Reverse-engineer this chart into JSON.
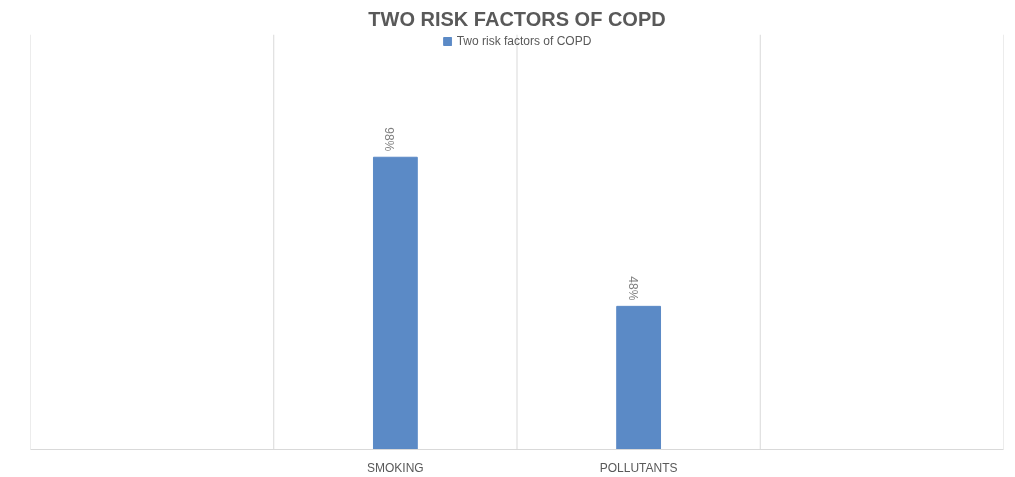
{
  "chart_data": {
    "type": "bar",
    "title": "TWO RISK FACTORS OF COPD",
    "categories": [
      null,
      "SMOKING",
      "POLLUTANTS",
      null
    ],
    "series": [
      {
        "name": "Two risk factors of COPD",
        "color": "#5b8ac6",
        "values": [
          null,
          98,
          48,
          null
        ],
        "value_labels": [
          null,
          "98%",
          "48%",
          null
        ]
      }
    ],
    "legend": "top",
    "grid": "x"
  }
}
